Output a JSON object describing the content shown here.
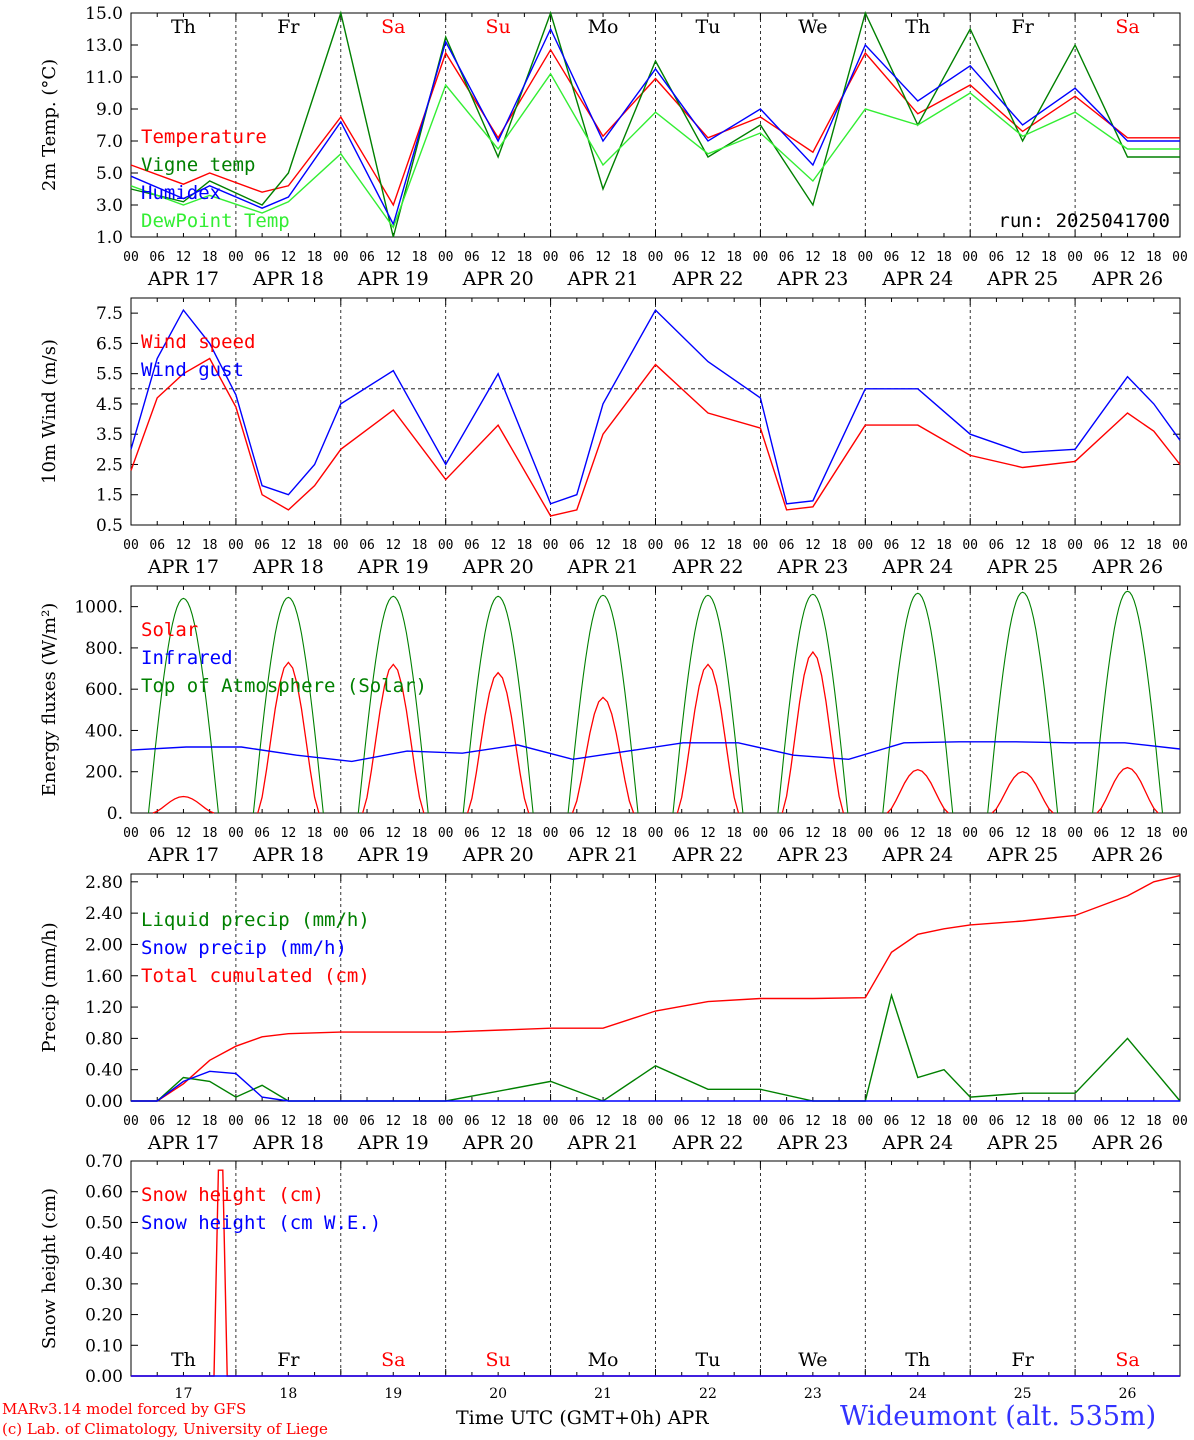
{
  "colors": {
    "red": "#ff0000",
    "green": "#008000",
    "blue": "#0000ff",
    "lightgreen": "#33ee33",
    "black": "#000000"
  },
  "x_hour_labels": [
    "00",
    "06",
    "12",
    "18"
  ],
  "x_day_labels": [
    "APR 17",
    "APR 18",
    "APR 19",
    "APR 20",
    "APR 21",
    "APR 22",
    "APR 23",
    "APR 24",
    "APR 25",
    "APR 26"
  ],
  "weekdays": [
    {
      "label": "Th",
      "color": "black"
    },
    {
      "label": "Fr",
      "color": "black"
    },
    {
      "label": "Sa",
      "color": "red"
    },
    {
      "label": "Su",
      "color": "red"
    },
    {
      "label": "Mo",
      "color": "black"
    },
    {
      "label": "Tu",
      "color": "black"
    },
    {
      "label": "We",
      "color": "black"
    },
    {
      "label": "Th",
      "color": "black"
    },
    {
      "label": "Fr",
      "color": "black"
    },
    {
      "label": "Sa",
      "color": "red"
    }
  ],
  "day_numbers": [
    "17",
    "18",
    "19",
    "20",
    "21",
    "22",
    "23",
    "24",
    "25",
    "26"
  ],
  "footer": {
    "model": "MARv3.14 model forced by GFS",
    "copyright": "(c) Lab. of Climatology, University of Liege",
    "axis_title": "Time UTC (GMT+0h) APR",
    "station": "Wideumont (alt. 535m)"
  },
  "chart_data": [
    {
      "id": "temp",
      "type": "line",
      "ylabel": "2m Temp. (°C)",
      "ylim": [
        1.0,
        15.0
      ],
      "yticks": [
        "1.0",
        "3.0",
        "5.0",
        "7.0",
        "9.0",
        "11.0",
        "13.0",
        "15.0"
      ],
      "annotation": "run: 2025041700",
      "legend": [
        {
          "name": "Temperature",
          "color": "red"
        },
        {
          "name": "Vigne temp",
          "color": "green"
        },
        {
          "name": "Humidex",
          "color": "blue"
        },
        {
          "name": "DewPoint Temp",
          "color": "lightgreen"
        }
      ],
      "x_hours": [
        0,
        12,
        18,
        30,
        36,
        48,
        60,
        72,
        84,
        96,
        108,
        120,
        132,
        144,
        156,
        168,
        180,
        192,
        204,
        216,
        228,
        240
      ],
      "series": [
        {
          "name": "Temperature",
          "color": "red",
          "values": [
            5.5,
            4.3,
            5.0,
            3.8,
            4.2,
            8.5,
            3.0,
            12.5,
            7.2,
            12.7,
            7.3,
            10.9,
            7.2,
            8.5,
            6.3,
            12.5,
            8.7,
            10.5,
            7.6,
            9.8,
            7.2,
            7.2
          ]
        },
        {
          "name": "Vigne temp",
          "color": "green",
          "values": [
            4.0,
            3.2,
            4.5,
            3.0,
            5.0,
            15.0,
            1.0,
            13.5,
            6.0,
            15.0,
            4.0,
            12.0,
            6.0,
            8.0,
            3.0,
            15.0,
            8.0,
            14.0,
            7.0,
            13.0,
            6.0,
            6.0
          ]
        },
        {
          "name": "Humidex",
          "color": "blue",
          "values": [
            4.8,
            3.4,
            4.2,
            2.8,
            3.5,
            8.2,
            1.8,
            13.2,
            7.0,
            14.0,
            7.0,
            11.5,
            7.0,
            9.0,
            5.5,
            13.0,
            9.5,
            11.7,
            8.0,
            10.3,
            7.0,
            7.0
          ]
        },
        {
          "name": "DewPoint Temp",
          "color": "lightgreen",
          "values": [
            4.2,
            3.0,
            3.6,
            2.5,
            3.2,
            6.2,
            1.6,
            10.5,
            6.5,
            11.2,
            5.5,
            8.8,
            6.2,
            7.5,
            4.5,
            9.0,
            8.0,
            10.0,
            7.3,
            8.8,
            6.5,
            6.5
          ]
        }
      ]
    },
    {
      "id": "wind",
      "type": "line",
      "ylabel": "10m Wind (m/s)",
      "ylim": [
        0.5,
        8.0
      ],
      "yticks": [
        "0.5",
        "1.5",
        "2.5",
        "3.5",
        "4.5",
        "5.5",
        "6.5",
        "7.5"
      ],
      "reference_line": 5.0,
      "legend": [
        {
          "name": "Wind speed",
          "color": "red"
        },
        {
          "name": "Wind gust",
          "color": "blue"
        }
      ],
      "x_hours": [
        0,
        6,
        12,
        18,
        24,
        30,
        36,
        42,
        48,
        60,
        72,
        84,
        96,
        102,
        108,
        120,
        132,
        144,
        150,
        156,
        168,
        180,
        192,
        204,
        216,
        228,
        234,
        240
      ],
      "series": [
        {
          "name": "Wind speed",
          "color": "red",
          "values": [
            2.3,
            4.7,
            5.5,
            6.0,
            4.4,
            1.5,
            1.0,
            1.8,
            3.0,
            4.3,
            2.0,
            3.8,
            0.8,
            1.0,
            3.5,
            5.8,
            4.2,
            3.7,
            1.0,
            1.1,
            3.8,
            3.8,
            2.8,
            2.4,
            2.6,
            4.2,
            3.6,
            2.5
          ]
        },
        {
          "name": "Wind gust",
          "color": "blue",
          "values": [
            3.0,
            6.0,
            7.6,
            6.5,
            4.8,
            1.8,
            1.5,
            2.5,
            4.5,
            5.6,
            2.5,
            5.5,
            1.2,
            1.5,
            4.5,
            7.6,
            5.9,
            4.7,
            1.2,
            1.3,
            5.0,
            5.0,
            3.5,
            2.9,
            3.0,
            5.4,
            4.5,
            3.3
          ]
        }
      ]
    },
    {
      "id": "energy",
      "type": "line",
      "ylabel": "Energy fluxes (W/m²)",
      "ylim": [
        0,
        1100
      ],
      "yticks": [
        "0.",
        "200.",
        "400.",
        "600.",
        "800.",
        "1000."
      ],
      "legend": [
        {
          "name": "Solar",
          "color": "red"
        },
        {
          "name": "Infrared",
          "color": "blue"
        },
        {
          "name": "Top of Atmosphere (Solar)",
          "color": "green"
        }
      ],
      "toa_peak_values": [
        1040,
        1045,
        1050,
        1050,
        1055,
        1055,
        1060,
        1065,
        1070,
        1075
      ],
      "solar_peak_values": [
        80,
        730,
        720,
        680,
        560,
        720,
        780,
        210,
        200,
        220
      ],
      "infrared_values": [
        305,
        320,
        320,
        280,
        250,
        300,
        290,
        330,
        260,
        300,
        340,
        340,
        280,
        260,
        340,
        345,
        345,
        340,
        340,
        310
      ]
    },
    {
      "id": "precip",
      "type": "line",
      "ylabel": "Precip (mm/h)",
      "ylim": [
        0,
        2.9
      ],
      "yticks": [
        "0.00",
        "0.40",
        "0.80",
        "1.20",
        "1.60",
        "2.00",
        "2.40",
        "2.80"
      ],
      "legend": [
        {
          "name": "Liquid precip (mm/h)",
          "color": "green"
        },
        {
          "name": "Snow precip (mm/h)",
          "color": "blue"
        },
        {
          "name": "Total cumulated (cm)",
          "color": "red"
        }
      ],
      "x_hours": [
        0,
        6,
        12,
        18,
        24,
        30,
        36,
        48,
        72,
        96,
        108,
        120,
        132,
        144,
        156,
        168,
        174,
        180,
        186,
        192,
        204,
        216,
        228,
        234,
        240
      ],
      "series": [
        {
          "name": "Total cumulated (cm)",
          "color": "red",
          "values": [
            0,
            0,
            0.22,
            0.52,
            0.7,
            0.82,
            0.86,
            0.88,
            0.88,
            0.93,
            0.93,
            1.15,
            1.27,
            1.31,
            1.31,
            1.32,
            1.9,
            2.13,
            2.2,
            2.25,
            2.3,
            2.37,
            2.62,
            2.8,
            2.88
          ]
        },
        {
          "name": "Liquid precip (mm/h)",
          "color": "green",
          "values": [
            0,
            0,
            0.3,
            0.25,
            0.05,
            0.2,
            0,
            0,
            0,
            0.25,
            0,
            0.45,
            0.15,
            0.15,
            0,
            0,
            1.35,
            0.3,
            0.4,
            0.05,
            0.1,
            0.1,
            0.8,
            0.4,
            0
          ]
        },
        {
          "name": "Snow precip (mm/h)",
          "color": "blue",
          "values": [
            0,
            0,
            0.25,
            0.38,
            0.35,
            0.05,
            0,
            0,
            0,
            0,
            0,
            0,
            0,
            0,
            0,
            0,
            0,
            0,
            0,
            0,
            0,
            0,
            0,
            0,
            0
          ]
        }
      ]
    },
    {
      "id": "snow",
      "type": "line",
      "ylabel": "Snow height (cm)",
      "ylim": [
        0,
        0.7
      ],
      "yticks": [
        "0.00",
        "0.10",
        "0.20",
        "0.30",
        "0.40",
        "0.50",
        "0.60",
        "0.70"
      ],
      "legend": [
        {
          "name": "Snow height (cm)",
          "color": "red"
        },
        {
          "name": "Snow height (cm W.E.)",
          "color": "blue"
        }
      ],
      "x_hours": [
        0,
        19,
        20,
        21,
        22,
        240
      ],
      "series": [
        {
          "name": "Snow height (cm)",
          "color": "red",
          "values": [
            0,
            0,
            0.67,
            0.67,
            0,
            0
          ]
        },
        {
          "name": "Snow height (cm W.E.)",
          "color": "blue",
          "values": [
            0,
            0,
            0,
            0,
            0,
            0
          ]
        }
      ]
    }
  ]
}
